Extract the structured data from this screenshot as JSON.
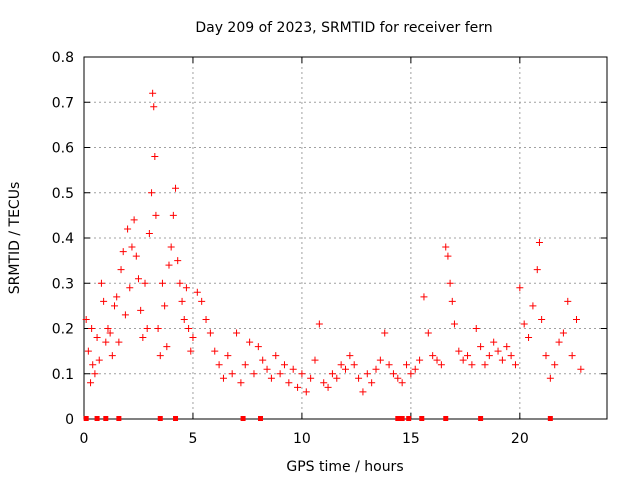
{
  "chart_data": {
    "type": "scatter",
    "title": "Day 209 of 2023, SRMTID for receiver fern",
    "xlabel": "GPS time / hours",
    "ylabel": "SRMTID / TECUs",
    "xlim": [
      0,
      24
    ],
    "ylim": [
      0,
      0.8
    ],
    "xticks": [
      0,
      5,
      10,
      15,
      20
    ],
    "yticks": [
      0,
      0.1,
      0.2,
      0.3,
      0.4,
      0.5,
      0.6,
      0.7,
      0.8
    ],
    "xtick_labels": [
      "0",
      "5",
      "10",
      "15",
      "20"
    ],
    "ytick_labels": [
      "0",
      "0.1",
      "0.2",
      "0.3",
      "0.4",
      "0.5",
      "0.6",
      "0.7",
      "0.8"
    ],
    "grid": true,
    "marker": "+",
    "color": "#ff0000",
    "series": [
      {
        "name": "SRMTID",
        "points": [
          [
            0.1,
            0.22
          ],
          [
            0.2,
            0.15
          ],
          [
            0.3,
            0.08
          ],
          [
            0.35,
            0.2
          ],
          [
            0.4,
            0.12
          ],
          [
            0.5,
            0.1
          ],
          [
            0.6,
            0.18
          ],
          [
            0.7,
            0.13
          ],
          [
            0.8,
            0.3
          ],
          [
            0.9,
            0.26
          ],
          [
            1.0,
            0.17
          ],
          [
            1.1,
            0.2
          ],
          [
            1.2,
            0.19
          ],
          [
            1.3,
            0.14
          ],
          [
            1.4,
            0.25
          ],
          [
            1.5,
            0.27
          ],
          [
            1.6,
            0.17
          ],
          [
            1.7,
            0.33
          ],
          [
            1.8,
            0.37
          ],
          [
            1.9,
            0.23
          ],
          [
            2.0,
            0.42
          ],
          [
            2.1,
            0.29
          ],
          [
            2.2,
            0.38
          ],
          [
            2.3,
            0.44
          ],
          [
            2.4,
            0.36
          ],
          [
            2.5,
            0.31
          ],
          [
            2.6,
            0.24
          ],
          [
            2.7,
            0.18
          ],
          [
            2.8,
            0.3
          ],
          [
            2.9,
            0.2
          ],
          [
            3.0,
            0.41
          ],
          [
            3.1,
            0.5
          ],
          [
            3.15,
            0.72
          ],
          [
            3.2,
            0.69
          ],
          [
            3.25,
            0.58
          ],
          [
            3.3,
            0.45
          ],
          [
            3.4,
            0.2
          ],
          [
            3.5,
            0.14
          ],
          [
            3.6,
            0.3
          ],
          [
            3.7,
            0.25
          ],
          [
            3.8,
            0.16
          ],
          [
            3.9,
            0.34
          ],
          [
            4.0,
            0.38
          ],
          [
            4.1,
            0.45
          ],
          [
            4.2,
            0.51
          ],
          [
            4.3,
            0.35
          ],
          [
            4.4,
            0.3
          ],
          [
            4.5,
            0.26
          ],
          [
            4.6,
            0.22
          ],
          [
            4.7,
            0.29
          ],
          [
            4.8,
            0.2
          ],
          [
            4.9,
            0.15
          ],
          [
            5.0,
            0.18
          ],
          [
            5.2,
            0.28
          ],
          [
            5.4,
            0.26
          ],
          [
            5.6,
            0.22
          ],
          [
            5.8,
            0.19
          ],
          [
            6.0,
            0.15
          ],
          [
            6.2,
            0.12
          ],
          [
            6.4,
            0.09
          ],
          [
            6.6,
            0.14
          ],
          [
            6.8,
            0.1
          ],
          [
            7.0,
            0.19
          ],
          [
            7.2,
            0.08
          ],
          [
            7.4,
            0.12
          ],
          [
            7.6,
            0.17
          ],
          [
            7.8,
            0.1
          ],
          [
            8.0,
            0.16
          ],
          [
            8.2,
            0.13
          ],
          [
            8.4,
            0.11
          ],
          [
            8.6,
            0.09
          ],
          [
            8.8,
            0.14
          ],
          [
            9.0,
            0.1
          ],
          [
            9.2,
            0.12
          ],
          [
            9.4,
            0.08
          ],
          [
            9.6,
            0.11
          ],
          [
            9.8,
            0.07
          ],
          [
            10.0,
            0.1
          ],
          [
            10.2,
            0.06
          ],
          [
            10.4,
            0.09
          ],
          [
            10.6,
            0.13
          ],
          [
            10.8,
            0.21
          ],
          [
            11.0,
            0.08
          ],
          [
            11.2,
            0.07
          ],
          [
            11.4,
            0.1
          ],
          [
            11.6,
            0.09
          ],
          [
            11.8,
            0.12
          ],
          [
            12.0,
            0.11
          ],
          [
            12.2,
            0.14
          ],
          [
            12.4,
            0.12
          ],
          [
            12.6,
            0.09
          ],
          [
            12.8,
            0.06
          ],
          [
            13.0,
            0.1
          ],
          [
            13.2,
            0.08
          ],
          [
            13.4,
            0.11
          ],
          [
            13.6,
            0.13
          ],
          [
            13.8,
            0.19
          ],
          [
            14.0,
            0.12
          ],
          [
            14.2,
            0.1
          ],
          [
            14.4,
            0.09
          ],
          [
            14.6,
            0.08
          ],
          [
            14.8,
            0.12
          ],
          [
            15.0,
            0.1
          ],
          [
            15.2,
            0.11
          ],
          [
            15.4,
            0.13
          ],
          [
            15.6,
            0.27
          ],
          [
            15.8,
            0.19
          ],
          [
            16.0,
            0.14
          ],
          [
            16.2,
            0.13
          ],
          [
            16.4,
            0.12
          ],
          [
            16.6,
            0.38
          ],
          [
            16.7,
            0.36
          ],
          [
            16.8,
            0.3
          ],
          [
            16.9,
            0.26
          ],
          [
            17.0,
            0.21
          ],
          [
            17.2,
            0.15
          ],
          [
            17.4,
            0.13
          ],
          [
            17.6,
            0.14
          ],
          [
            17.8,
            0.12
          ],
          [
            18.0,
            0.2
          ],
          [
            18.2,
            0.16
          ],
          [
            18.4,
            0.12
          ],
          [
            18.6,
            0.14
          ],
          [
            18.8,
            0.17
          ],
          [
            19.0,
            0.15
          ],
          [
            19.2,
            0.13
          ],
          [
            19.4,
            0.16
          ],
          [
            19.6,
            0.14
          ],
          [
            19.8,
            0.12
          ],
          [
            20.0,
            0.29
          ],
          [
            20.2,
            0.21
          ],
          [
            20.4,
            0.18
          ],
          [
            20.6,
            0.25
          ],
          [
            20.8,
            0.33
          ],
          [
            20.9,
            0.39
          ],
          [
            21.0,
            0.22
          ],
          [
            21.2,
            0.14
          ],
          [
            21.4,
            0.09
          ],
          [
            21.6,
            0.12
          ],
          [
            21.8,
            0.17
          ],
          [
            22.0,
            0.19
          ],
          [
            22.2,
            0.26
          ],
          [
            22.4,
            0.14
          ],
          [
            22.6,
            0.22
          ],
          [
            22.8,
            0.11
          ]
        ]
      }
    ],
    "baseline_markers_x": [
      0.1,
      0.6,
      1.0,
      1.6,
      3.5,
      4.2,
      7.3,
      8.1,
      14.4,
      14.6,
      14.9,
      15.5,
      16.6,
      18.2,
      21.4
    ]
  }
}
